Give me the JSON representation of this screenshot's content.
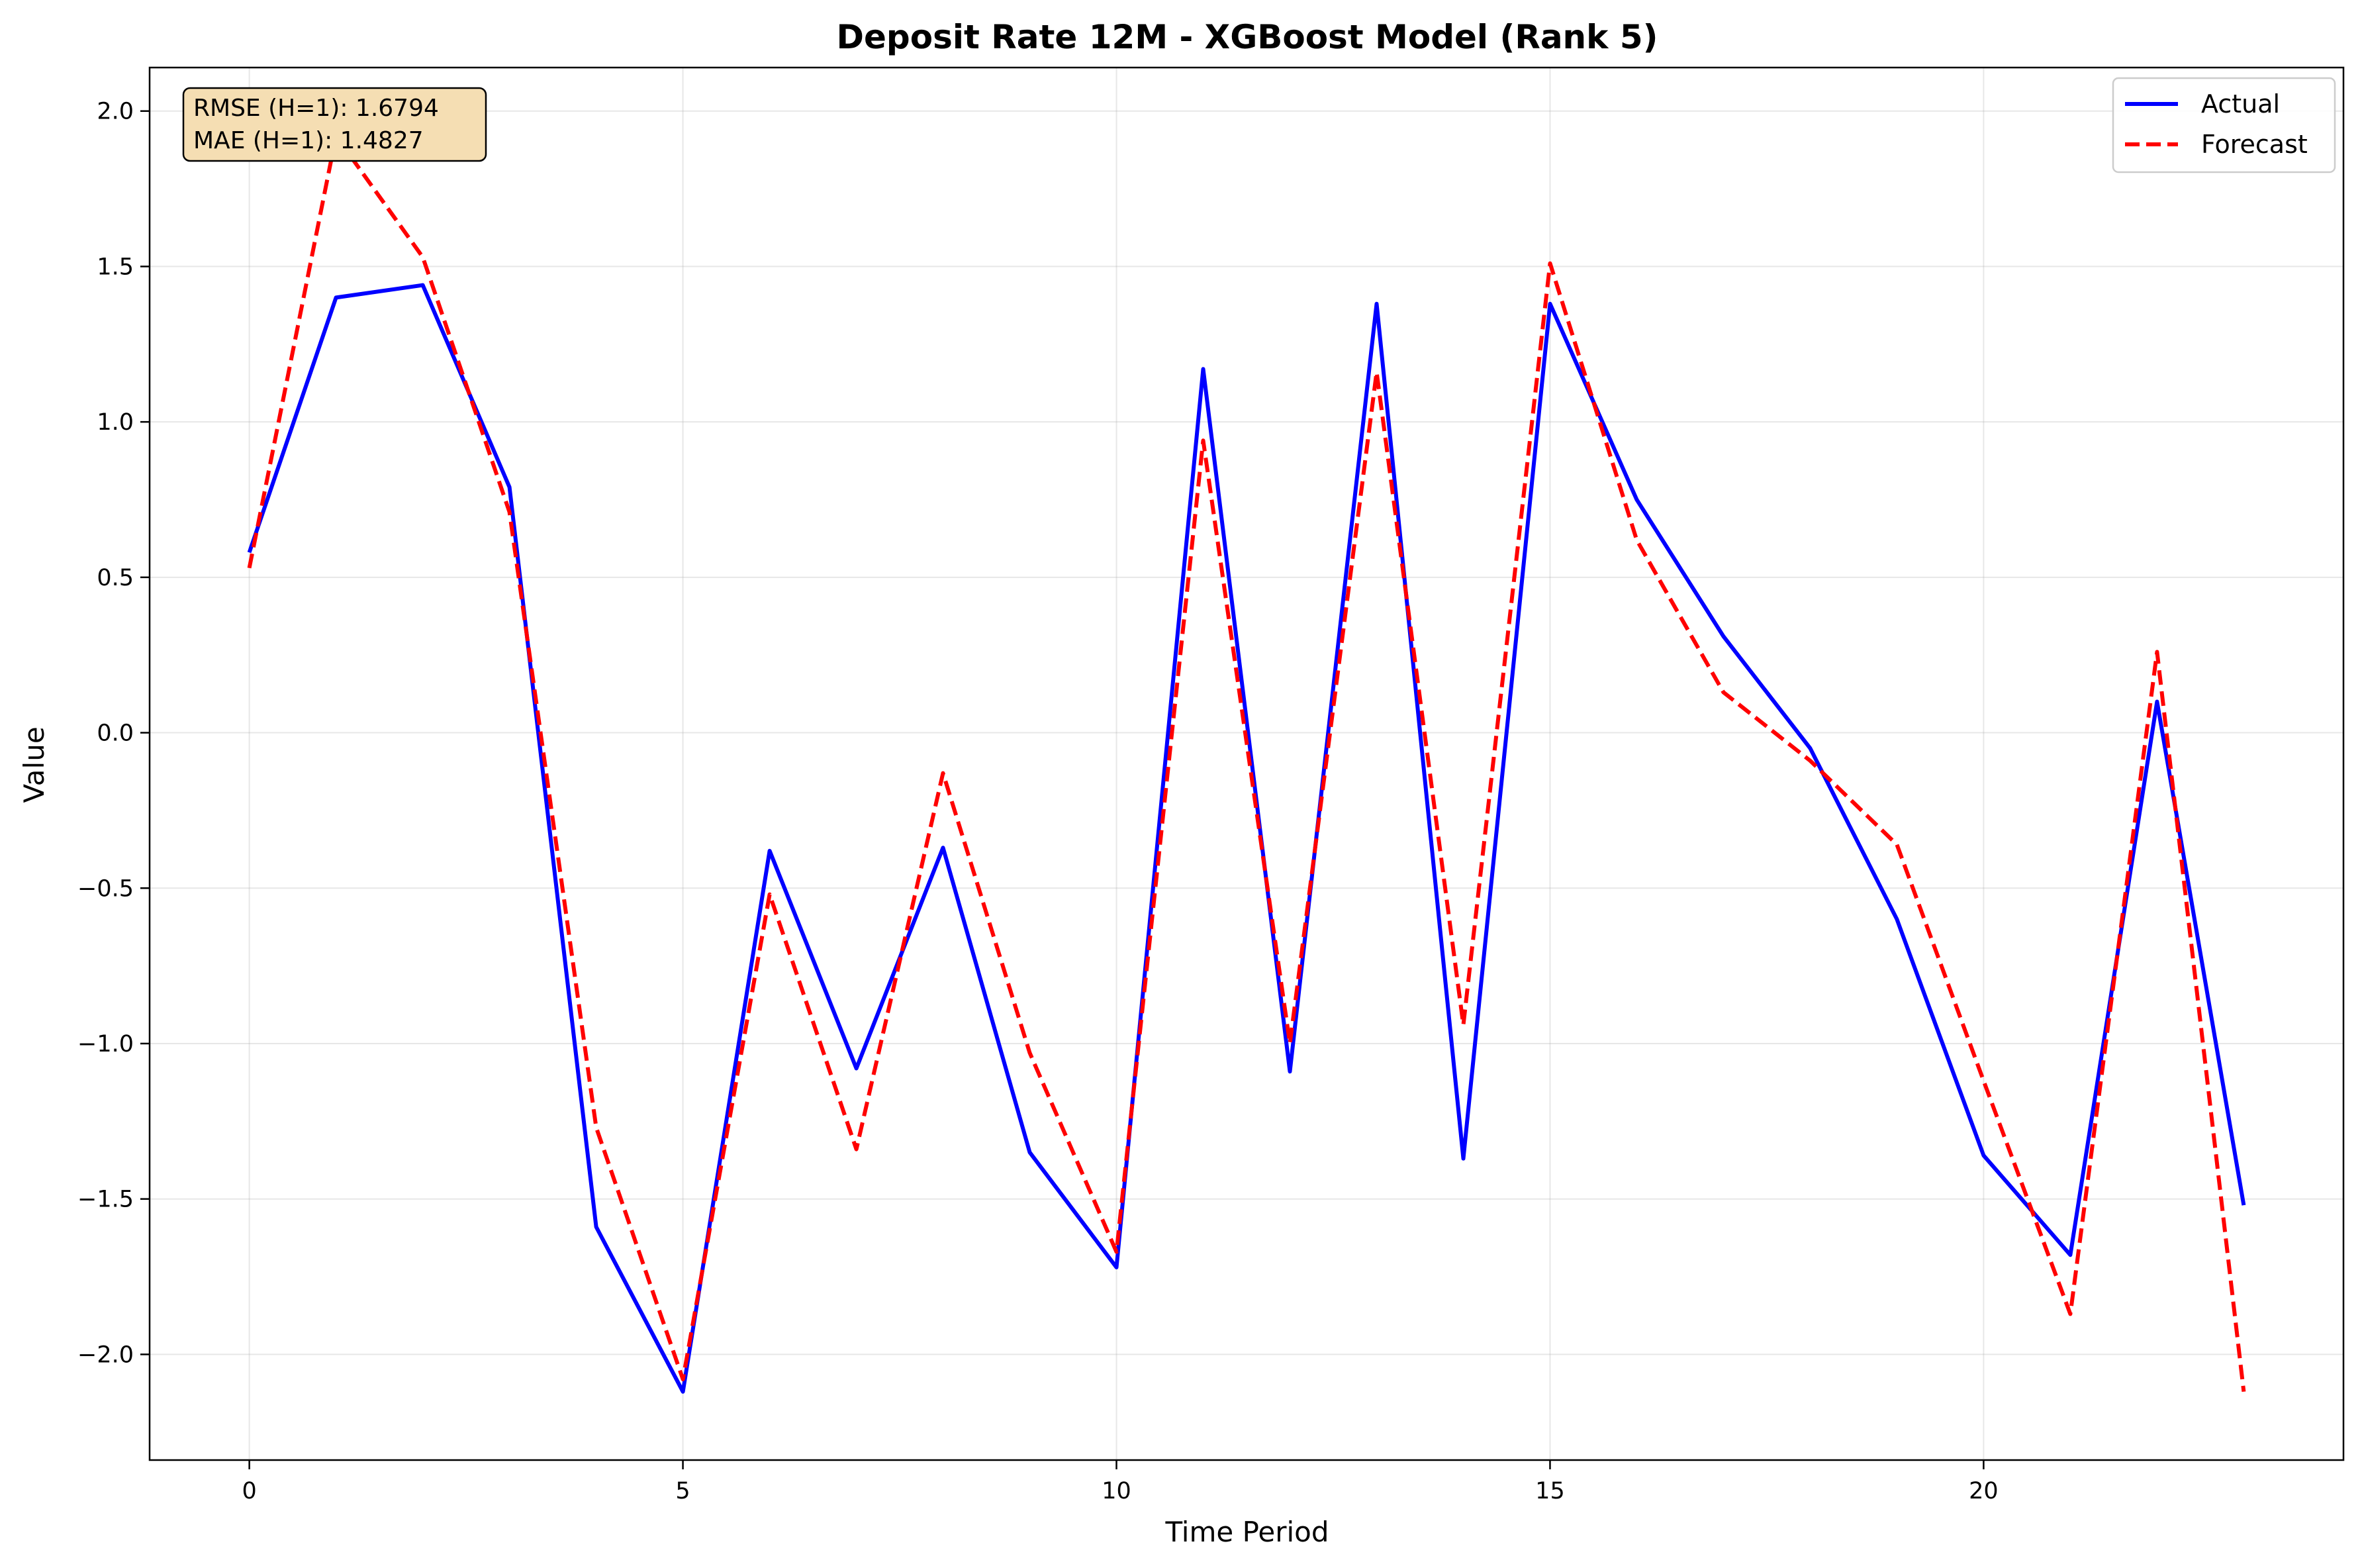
{
  "chart_data": {
    "type": "line",
    "title": "Deposit Rate 12M - XGBoost Model (Rank 5)",
    "xlabel": "Time Period",
    "ylabel": "Value",
    "xlim": [
      -1.15,
      24.15
    ],
    "ylim": [
      -2.34,
      2.14
    ],
    "xticks": [
      0,
      5,
      10,
      15,
      20
    ],
    "yticks": [
      -2.0,
      -1.5,
      -1.0,
      -0.5,
      0.0,
      0.5,
      1.0,
      1.5,
      2.0
    ],
    "xtick_labels": [
      "0",
      "5",
      "10",
      "15",
      "20"
    ],
    "ytick_labels": [
      "−2.0",
      "−1.5",
      "−1.0",
      "−0.5",
      "0.0",
      "0.5",
      "1.0",
      "1.5",
      "2.0"
    ],
    "grid": true,
    "legend_position": "top-right",
    "x": [
      0,
      1,
      2,
      3,
      4,
      5,
      6,
      7,
      8,
      9,
      10,
      11,
      12,
      13,
      14,
      15,
      16,
      17,
      18,
      19,
      20,
      21,
      22,
      23
    ],
    "series": [
      {
        "name": "Actual",
        "color": "#0000ff",
        "style": "solid",
        "values": [
          0.58,
          1.4,
          1.44,
          0.79,
          -1.59,
          -2.12,
          -0.38,
          -1.08,
          -0.37,
          -1.35,
          -1.72,
          1.17,
          -1.09,
          1.38,
          -1.37,
          1.38,
          0.75,
          0.31,
          -0.05,
          -0.6,
          -1.36,
          -1.68,
          0.1,
          -1.52
        ]
      },
      {
        "name": "Forecast",
        "color": "#ff0000",
        "style": "dashed",
        "values": [
          0.53,
          1.92,
          1.53,
          0.71,
          -1.27,
          -2.08,
          -0.52,
          -1.34,
          -0.13,
          -1.03,
          -1.67,
          0.94,
          -1.0,
          1.16,
          -0.94,
          1.51,
          0.62,
          0.13,
          -0.09,
          -0.36,
          -1.12,
          -1.87,
          0.26,
          -2.12
        ]
      }
    ],
    "annotation": {
      "lines": [
        "RMSE (H=1): 1.6794",
        "MAE (H=1): 1.4827"
      ],
      "position": "top-left",
      "background": "#f5deb3"
    }
  }
}
